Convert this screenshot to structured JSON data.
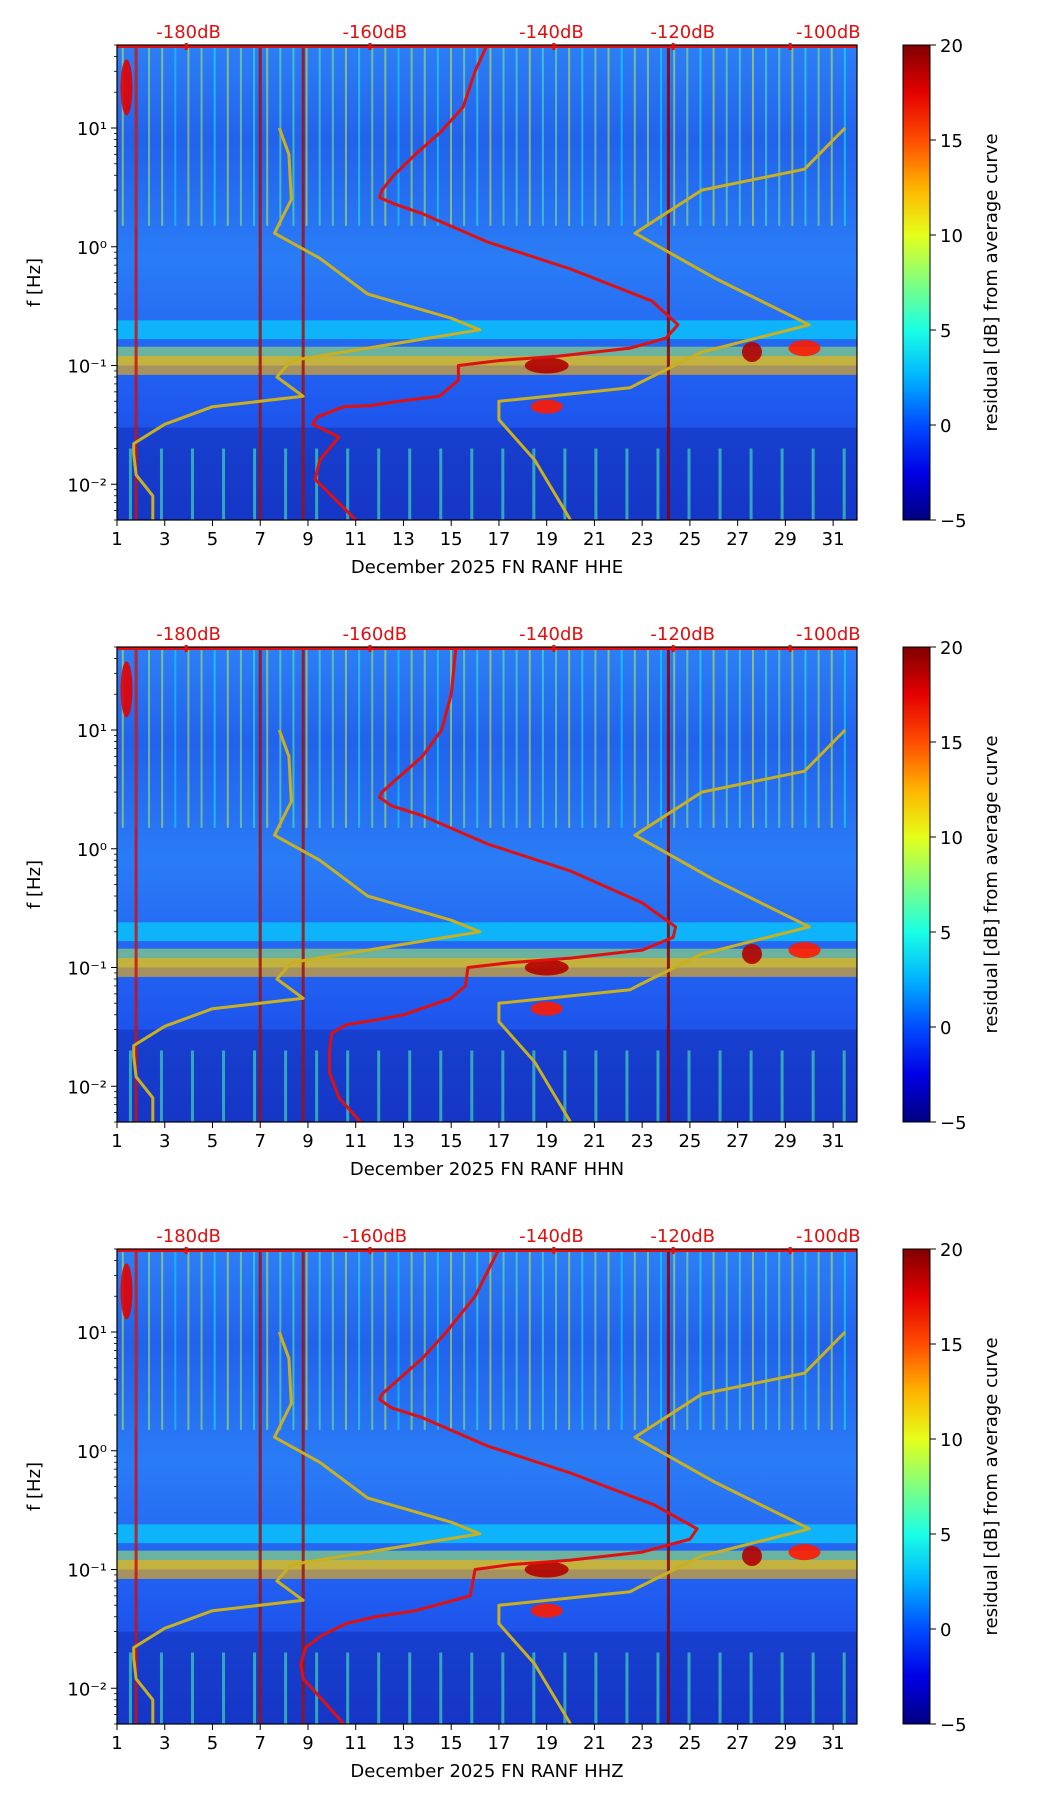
{
  "colors": {
    "red_curve": "#e01010",
    "yellow_curve": "#c8b020",
    "db_label": "#e01010",
    "colormap": [
      "#00007f",
      "#0000ff",
      "#007fff",
      "#00ffff",
      "#7fff7f",
      "#ffff00",
      "#ff7f00",
      "#ff0000",
      "#7f0000"
    ]
  },
  "chart_data": [
    {
      "type": "heatmap",
      "title": "",
      "xlabel": "December 2025 FN RANF  HHE",
      "ylabel": "f [Hz]",
      "x_ticks": [
        "1",
        "3",
        "5",
        "7",
        "9",
        "11",
        "13",
        "15",
        "17",
        "19",
        "21",
        "23",
        "25",
        "27",
        "29",
        "31"
      ],
      "xlim": [
        1,
        32
      ],
      "y_ticks": [
        "10⁻²",
        "10⁻¹",
        "10⁰",
        "10¹"
      ],
      "ylim": [
        0.005,
        50
      ],
      "y_scale": "log",
      "top_axis_labels": [
        "-180dB",
        "-160dB",
        "-140dB",
        "-120dB",
        "-100dB"
      ],
      "colorbar": {
        "label": "residual [dB] from average curve",
        "ticks": [
          "20",
          "15",
          "10",
          "5",
          "0",
          "−5"
        ],
        "range": [
          -5,
          20
        ]
      },
      "series": [
        {
          "name": "median PSD (red)",
          "x_day": [
            11.0,
            10.0,
            9.3,
            9.5,
            10.3,
            9.2,
            9.4,
            10.5,
            11.6,
            12.8,
            14.5,
            15.3,
            15.3,
            17.0,
            19.5,
            22.5,
            24.0,
            24.5,
            23.4,
            20.0,
            16.5,
            13.8,
            12.6,
            12.0,
            12.1,
            12.6,
            13.5,
            14.5,
            15.5,
            16.0,
            16.5
          ],
          "y_hz": [
            0.005,
            0.008,
            0.011,
            0.016,
            0.025,
            0.032,
            0.037,
            0.045,
            0.046,
            0.05,
            0.055,
            0.075,
            0.1,
            0.11,
            0.12,
            0.14,
            0.17,
            0.22,
            0.35,
            0.65,
            1.1,
            1.9,
            2.3,
            2.6,
            3.0,
            4.0,
            6.0,
            9.0,
            15.0,
            30.0,
            50.0
          ]
        },
        {
          "name": "NLNM (yellow)",
          "x_day": [
            2.5,
            2.5,
            1.8,
            1.7,
            1.7,
            3.0,
            5.0,
            8.8,
            7.7,
            8.3,
            16.2,
            15.0,
            11.5,
            9.5,
            7.6,
            8.3,
            8.2,
            7.8
          ],
          "y_hz": [
            0.005,
            0.008,
            0.012,
            0.018,
            0.022,
            0.032,
            0.045,
            0.055,
            0.08,
            0.11,
            0.2,
            0.25,
            0.4,
            0.8,
            1.3,
            2.5,
            6.0,
            10.0
          ]
        },
        {
          "name": "NHNM (yellow)",
          "x_day": [
            20.0,
            18.5,
            17.0,
            17.0,
            22.5,
            22.8,
            25.5,
            30.0,
            26.0,
            22.7,
            25.5,
            29.8,
            31.5
          ],
          "y_hz": [
            0.005,
            0.016,
            0.035,
            0.05,
            0.065,
            0.07,
            0.13,
            0.22,
            0.55,
            1.3,
            3.0,
            4.5,
            10.0
          ]
        }
      ]
    },
    {
      "type": "heatmap",
      "title": "",
      "xlabel": "December 2025 FN RANF  HHN",
      "ylabel": "f [Hz]",
      "x_ticks": [
        "1",
        "3",
        "5",
        "7",
        "9",
        "11",
        "13",
        "15",
        "17",
        "19",
        "21",
        "23",
        "25",
        "27",
        "29",
        "31"
      ],
      "xlim": [
        1,
        32
      ],
      "y_ticks": [
        "10⁻²",
        "10⁻¹",
        "10⁰",
        "10¹"
      ],
      "ylim": [
        0.005,
        50
      ],
      "y_scale": "log",
      "top_axis_labels": [
        "-180dB",
        "-160dB",
        "-140dB",
        "-120dB",
        "-100dB"
      ],
      "colorbar": {
        "label": "residual [dB] from average curve",
        "ticks": [
          "20",
          "15",
          "10",
          "5",
          "0",
          "−5"
        ],
        "range": [
          -5,
          20
        ]
      },
      "series": [
        {
          "name": "median PSD (red)",
          "x_day": [
            11.2,
            10.3,
            9.9,
            9.9,
            10.0,
            10.6,
            11.8,
            13.0,
            15.0,
            15.6,
            15.7,
            17.5,
            20.0,
            23.0,
            24.3,
            24.4,
            23.0,
            20.0,
            16.5,
            13.8,
            12.5,
            12.0,
            12.1,
            12.8,
            13.8,
            14.6,
            15.0,
            15.2
          ],
          "y_hz": [
            0.005,
            0.008,
            0.013,
            0.02,
            0.028,
            0.033,
            0.036,
            0.04,
            0.055,
            0.07,
            0.1,
            0.11,
            0.12,
            0.14,
            0.18,
            0.22,
            0.35,
            0.65,
            1.1,
            1.9,
            2.3,
            2.7,
            3.0,
            4.0,
            6.0,
            10.0,
            20.0,
            50.0
          ]
        },
        {
          "name": "NLNM (yellow)",
          "x_day": [
            2.5,
            2.5,
            1.8,
            1.7,
            1.7,
            3.0,
            5.0,
            8.8,
            7.7,
            8.3,
            16.2,
            15.0,
            11.5,
            9.5,
            7.6,
            8.3,
            8.2,
            7.8
          ],
          "y_hz": [
            0.005,
            0.008,
            0.012,
            0.018,
            0.022,
            0.032,
            0.045,
            0.055,
            0.08,
            0.11,
            0.2,
            0.25,
            0.4,
            0.8,
            1.3,
            2.5,
            6.0,
            10.0
          ]
        },
        {
          "name": "NHNM (yellow)",
          "x_day": [
            20.0,
            18.5,
            17.0,
            17.0,
            22.5,
            22.8,
            25.5,
            30.0,
            26.0,
            22.7,
            25.5,
            29.8,
            31.5
          ],
          "y_hz": [
            0.005,
            0.016,
            0.035,
            0.05,
            0.065,
            0.07,
            0.13,
            0.22,
            0.55,
            1.3,
            3.0,
            4.5,
            10.0
          ]
        }
      ]
    },
    {
      "type": "heatmap",
      "title": "",
      "xlabel": "December 2025 FN RANF  HHZ",
      "ylabel": "f [Hz]",
      "x_ticks": [
        "1",
        "3",
        "5",
        "7",
        "9",
        "11",
        "13",
        "15",
        "17",
        "19",
        "21",
        "23",
        "25",
        "27",
        "29",
        "31"
      ],
      "xlim": [
        1,
        32
      ],
      "y_ticks": [
        "10⁻²",
        "10⁻¹",
        "10⁰",
        "10¹"
      ],
      "ylim": [
        0.005,
        50
      ],
      "y_scale": "log",
      "top_axis_labels": [
        "-180dB",
        "-160dB",
        "-140dB",
        "-120dB",
        "-100dB"
      ],
      "colorbar": {
        "label": "residual [dB] from average curve",
        "ticks": [
          "20",
          "15",
          "10",
          "5",
          "0",
          "−5"
        ],
        "range": [
          -5,
          20
        ]
      },
      "series": [
        {
          "name": "median PSD (red)",
          "x_day": [
            10.5,
            9.6,
            8.8,
            8.7,
            8.9,
            9.6,
            10.6,
            11.8,
            13.5,
            15.8,
            16.0,
            17.5,
            20.0,
            23.0,
            25.0,
            25.3,
            23.5,
            20.0,
            16.5,
            13.8,
            12.5,
            12.0,
            12.1,
            12.8,
            13.8,
            14.8,
            16.0,
            17.0
          ],
          "y_hz": [
            0.005,
            0.008,
            0.012,
            0.016,
            0.022,
            0.028,
            0.035,
            0.04,
            0.045,
            0.06,
            0.1,
            0.11,
            0.12,
            0.14,
            0.18,
            0.22,
            0.35,
            0.65,
            1.1,
            1.9,
            2.3,
            2.7,
            3.0,
            4.0,
            6.0,
            10.0,
            20.0,
            50.0
          ]
        },
        {
          "name": "NLNM (yellow)",
          "x_day": [
            2.5,
            2.5,
            1.8,
            1.7,
            1.7,
            3.0,
            5.0,
            8.8,
            7.7,
            8.3,
            16.2,
            15.0,
            11.5,
            9.5,
            7.6,
            8.3,
            8.2,
            7.8
          ],
          "y_hz": [
            0.005,
            0.008,
            0.012,
            0.018,
            0.022,
            0.032,
            0.045,
            0.055,
            0.08,
            0.11,
            0.2,
            0.25,
            0.4,
            0.8,
            1.3,
            2.5,
            6.0,
            10.0
          ]
        },
        {
          "name": "NHNM (yellow)",
          "x_day": [
            20.0,
            18.5,
            17.0,
            17.0,
            22.5,
            22.8,
            25.5,
            30.0,
            26.0,
            22.7,
            25.5,
            29.8,
            31.5
          ],
          "y_hz": [
            0.005,
            0.016,
            0.035,
            0.05,
            0.065,
            0.07,
            0.13,
            0.22,
            0.55,
            1.3,
            3.0,
            4.5,
            10.0
          ]
        }
      ]
    }
  ]
}
